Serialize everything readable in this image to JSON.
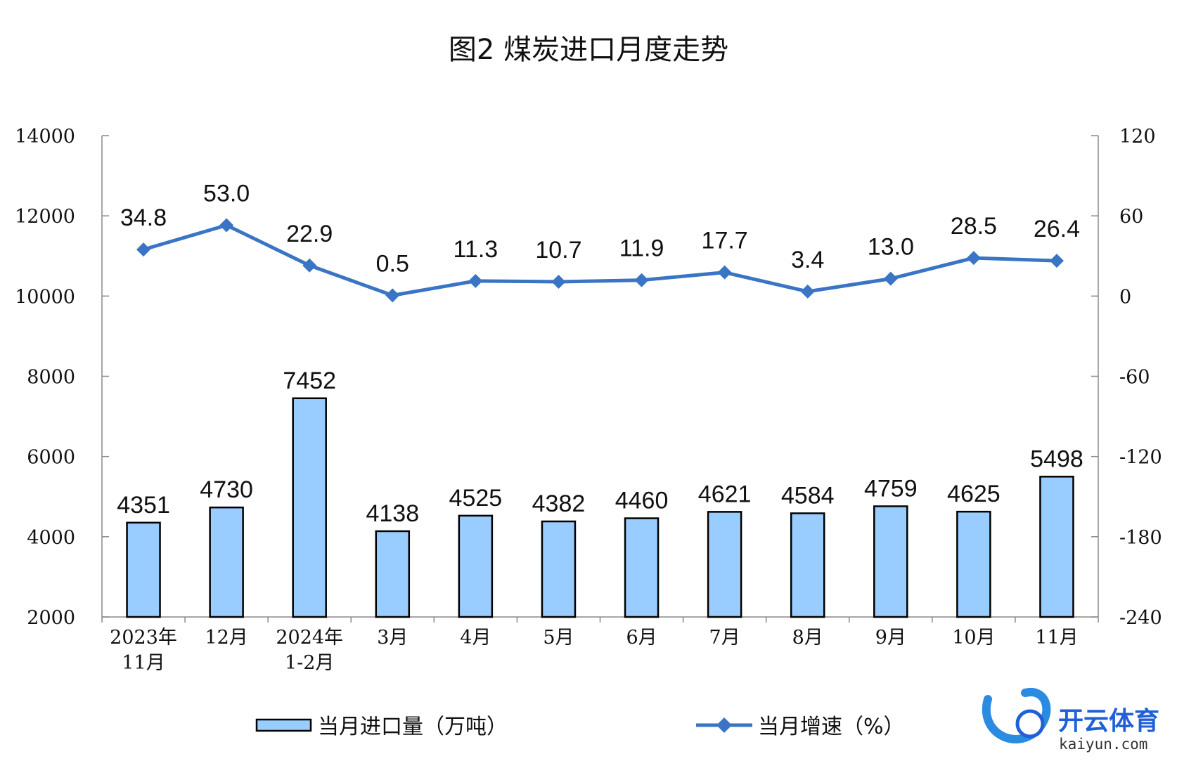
{
  "chart_data": {
    "type": "bar+line",
    "title": "图2  煤炭进口月度走势",
    "categories": [
      [
        "2023年",
        "11月"
      ],
      [
        "12月"
      ],
      [
        "2024年",
        "1-2月"
      ],
      [
        "3月"
      ],
      [
        "4月"
      ],
      [
        "5月"
      ],
      [
        "6月"
      ],
      [
        "7月"
      ],
      [
        "8月"
      ],
      [
        "9月"
      ],
      [
        "10月"
      ],
      [
        "11月"
      ]
    ],
    "series": [
      {
        "name": "当月进口量（万吨）",
        "type": "bar",
        "axis": "left",
        "values": [
          4351,
          4730,
          7452,
          4138,
          4525,
          4382,
          4460,
          4621,
          4584,
          4759,
          4625,
          5498
        ],
        "labels": [
          "4351",
          "4730",
          "7452",
          "4138",
          "4525",
          "4382",
          "4460",
          "4621",
          "4584",
          "4759",
          "4625",
          "5498"
        ],
        "color": "#99ccff"
      },
      {
        "name": "当月增速（%）",
        "type": "line",
        "axis": "right",
        "values": [
          34.8,
          53.0,
          22.9,
          0.5,
          11.3,
          10.7,
          11.9,
          17.7,
          3.4,
          13.0,
          28.5,
          26.4
        ],
        "labels": [
          "34.8",
          "53.0",
          "22.9",
          "0.5",
          "11.3",
          "10.7",
          "11.9",
          "17.7",
          "3.4",
          "13.0",
          "28.5",
          "26.4"
        ],
        "color": "#3a74c4"
      }
    ],
    "y_left": {
      "ylim": [
        2000,
        14000
      ],
      "ticks": [
        "2000",
        "4000",
        "6000",
        "8000",
        "10000",
        "12000",
        "14000"
      ]
    },
    "y_right": {
      "ylim": [
        -240,
        120
      ],
      "ticks": [
        "-240",
        "-180",
        "-120",
        "-60",
        "0",
        "60",
        "120"
      ]
    },
    "grid": false,
    "legend_position": "bottom"
  },
  "watermark": {
    "text": "开云体育",
    "subtext": "kaiyun.com",
    "color": "#1f5fd8"
  }
}
